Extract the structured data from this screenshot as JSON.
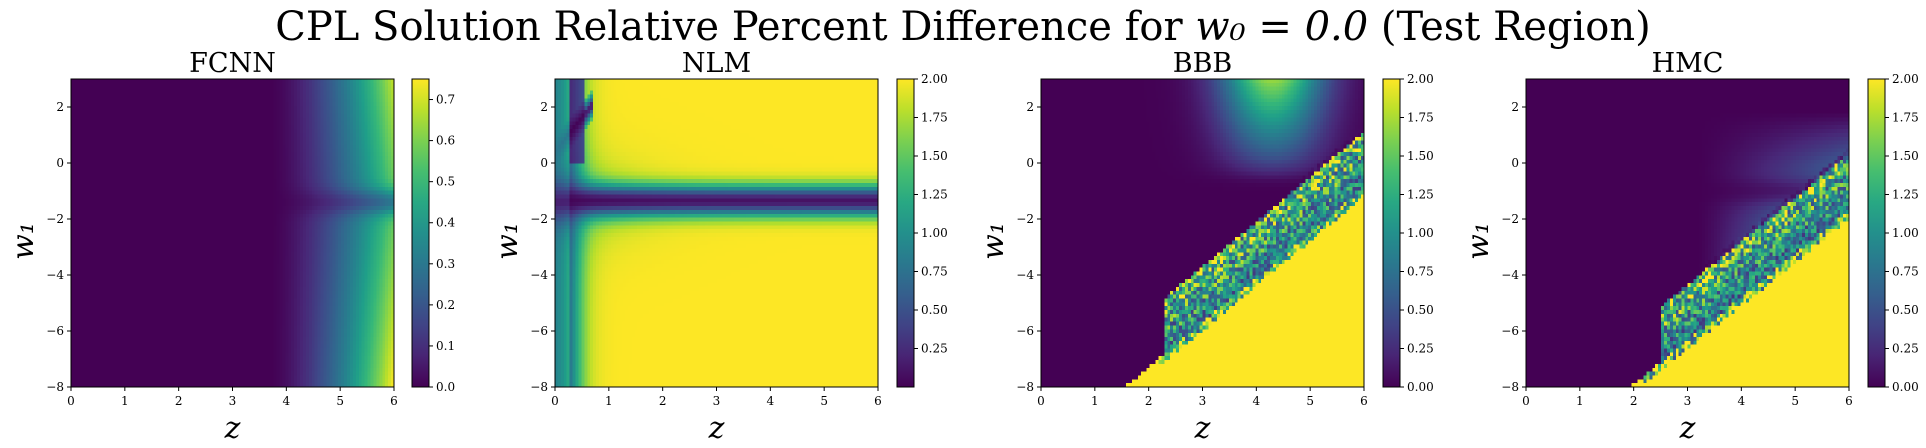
{
  "figure": {
    "title_prefix": "CPL Solution Relative Percent Difference for ",
    "title_math": "w₀ = 0.0",
    "title_suffix": " (Test Region)"
  },
  "chart_data": [
    {
      "type": "heatmap",
      "title": "FCNN",
      "xlabel": "z",
      "ylabel": "w₁",
      "xlim": [
        0,
        6
      ],
      "ylim": [
        -8,
        3
      ],
      "xticks": [
        "0",
        "1",
        "2",
        "3",
        "4",
        "5",
        "6"
      ],
      "yticks": [
        "2",
        "0",
        "−2",
        "−4",
        "−6",
        "−8"
      ],
      "colormap": "viridis",
      "colorbar_range": [
        0,
        0.75
      ],
      "colorbar_ticks": [
        "0.0",
        "0.1",
        "0.2",
        "0.3",
        "0.4",
        "0.5",
        "0.6",
        "0.7"
      ],
      "pattern": "smooth"
    },
    {
      "type": "heatmap",
      "title": "NLM",
      "xlabel": "z",
      "ylabel": "w₁",
      "xlim": [
        0,
        6
      ],
      "ylim": [
        -8,
        3
      ],
      "xticks": [
        "0",
        "1",
        "2",
        "3",
        "4",
        "5",
        "6"
      ],
      "yticks": [
        "2",
        "0",
        "−2",
        "−4",
        "−6",
        "−8"
      ],
      "colormap": "viridis",
      "colorbar_range": [
        0,
        2.0
      ],
      "colorbar_ticks": [
        "0.25",
        "0.50",
        "0.75",
        "1.00",
        "1.25",
        "1.50",
        "1.75",
        "2.00"
      ],
      "pattern": "bands"
    },
    {
      "type": "heatmap",
      "title": "BBB",
      "xlabel": "z",
      "ylabel": "w₁",
      "xlim": [
        0,
        6
      ],
      "ylim": [
        -8,
        3
      ],
      "xticks": [
        "0",
        "1",
        "2",
        "3",
        "4",
        "5",
        "6"
      ],
      "yticks": [
        "2",
        "0",
        "−2",
        "−4",
        "−6",
        "−8"
      ],
      "colormap": "viridis",
      "colorbar_range": [
        0,
        2.0
      ],
      "colorbar_ticks": [
        "0.00",
        "0.25",
        "0.50",
        "0.75",
        "1.00",
        "1.25",
        "1.50",
        "1.75",
        "2.00"
      ],
      "pattern": "noisy"
    },
    {
      "type": "heatmap",
      "title": "HMC",
      "xlabel": "z",
      "ylabel": "w₁",
      "xlim": [
        0,
        6
      ],
      "ylim": [
        -8,
        3
      ],
      "xticks": [
        "0",
        "1",
        "2",
        "3",
        "4",
        "5",
        "6"
      ],
      "yticks": [
        "2",
        "0",
        "−2",
        "−4",
        "−6",
        "−8"
      ],
      "colormap": "viridis",
      "colorbar_range": [
        0,
        2.0
      ],
      "colorbar_ticks": [
        "0.00",
        "0.25",
        "0.50",
        "0.75",
        "1.00",
        "1.25",
        "1.50",
        "1.75",
        "2.00"
      ],
      "pattern": "smooth-noisy"
    }
  ]
}
